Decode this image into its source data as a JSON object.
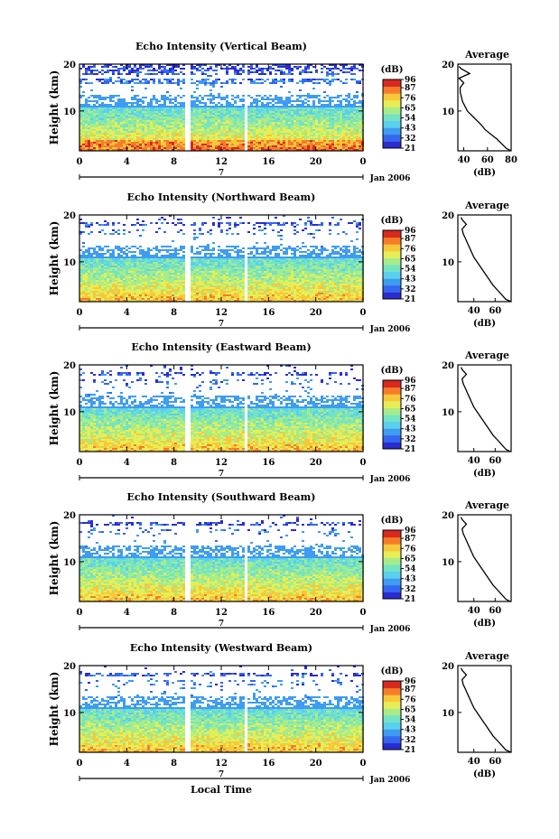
{
  "figure": {
    "x_axis_label": "Local Time",
    "date_label": "Jan 2006",
    "day_label": "7",
    "y_axis_label": "Height (km)",
    "avg_title": "Average",
    "avg_xlabel": "(dB)",
    "colorbar_unit": "(dB)",
    "colorbar_ticks": [
      "96",
      "87",
      "76",
      "65",
      "54",
      "43",
      "32",
      "21"
    ],
    "colors": {
      "scale": [
        "#2b2cd0",
        "#3566ef",
        "#3f9cf0",
        "#5ad0ee",
        "#74e3c4",
        "#a6ec8a",
        "#e7ee55",
        "#f7c83a",
        "#f57d2a",
        "#d9281e"
      ],
      "gap": "#ffffff"
    }
  },
  "chart_data": [
    {
      "type": "heatmap",
      "title": "Echo Intensity (Vertical Beam)",
      "xlabel": "Local Time",
      "ylabel": "Height (km)",
      "x_ticks": [
        "0",
        "4",
        "8",
        "12",
        "16",
        "20",
        "0"
      ],
      "y_ticks": [
        "20",
        "10"
      ],
      "xlim": [
        0,
        24
      ],
      "ylim": [
        1.5,
        20
      ],
      "colorbar": {
        "label": "(dB)",
        "range": [
          21,
          96
        ],
        "ticks": [
          96,
          87,
          76,
          65,
          54,
          43,
          32,
          21
        ]
      },
      "data_gaps_hours": [
        [
          8.9,
          9.3
        ],
        [
          13.8,
          14.2
        ]
      ],
      "average_profile": {
        "title": "Average",
        "xlabel": "(dB)",
        "x_ticks": [
          "40",
          "60",
          "80"
        ],
        "xlim": [
          35,
          80
        ],
        "y_ticks": [
          "20",
          "10"
        ],
        "height_km": [
          1.5,
          2,
          3,
          4,
          5,
          6,
          7,
          8,
          9,
          10,
          11,
          12,
          13,
          14,
          15,
          16,
          17,
          18,
          19,
          19.5
        ],
        "avg_db": [
          80,
          76,
          72,
          68,
          63,
          58,
          55,
          51,
          47,
          43,
          41,
          39,
          38,
          37,
          37,
          40,
          36,
          45,
          38,
          36
        ]
      }
    },
    {
      "type": "heatmap",
      "title": "Echo Intensity (Northward Beam)",
      "xlabel": "Local Time",
      "ylabel": "Height (km)",
      "x_ticks": [
        "0",
        "4",
        "8",
        "12",
        "16",
        "20",
        "0"
      ],
      "y_ticks": [
        "20",
        "10"
      ],
      "xlim": [
        0,
        24
      ],
      "ylim": [
        1.5,
        20
      ],
      "colorbar": {
        "label": "(dB)",
        "range": [
          21,
          96
        ],
        "ticks": [
          96,
          87,
          76,
          65,
          54,
          43,
          32,
          21
        ]
      },
      "data_gaps_hours": [
        [
          8.9,
          9.3
        ],
        [
          13.8,
          14.2
        ]
      ],
      "average_profile": {
        "title": "Average",
        "xlabel": "(dB)",
        "x_ticks": [
          "40",
          "60"
        ],
        "xlim": [
          25,
          75
        ],
        "y_ticks": [
          "20",
          "10"
        ],
        "height_km": [
          1.5,
          2,
          3,
          4,
          5,
          6,
          7,
          8,
          9,
          10,
          11,
          12,
          13,
          14,
          15,
          16,
          17,
          18,
          19,
          19.5
        ],
        "avg_db": [
          75,
          70,
          66,
          62,
          58,
          55,
          52,
          49,
          46,
          43,
          40,
          38,
          36,
          34,
          32,
          30,
          29,
          33,
          29,
          28
        ]
      }
    },
    {
      "type": "heatmap",
      "title": "Echo Intensity (Eastward Beam)",
      "xlabel": "Local Time",
      "ylabel": "Height (km)",
      "x_ticks": [
        "0",
        "4",
        "8",
        "12",
        "16",
        "20",
        "0"
      ],
      "y_ticks": [
        "20",
        "10"
      ],
      "xlim": [
        0,
        24
      ],
      "ylim": [
        1.5,
        20
      ],
      "colorbar": {
        "label": "(dB)",
        "range": [
          21,
          96
        ],
        "ticks": [
          96,
          87,
          76,
          65,
          54,
          43,
          32,
          21
        ]
      },
      "data_gaps_hours": [
        [
          8.9,
          9.3
        ],
        [
          13.8,
          14.2
        ]
      ],
      "average_profile": {
        "title": "Average",
        "xlabel": "(dB)",
        "x_ticks": [
          "40",
          "60"
        ],
        "xlim": [
          25,
          75
        ],
        "y_ticks": [
          "20",
          "10"
        ],
        "height_km": [
          1.5,
          2,
          3,
          4,
          5,
          6,
          7,
          8,
          9,
          10,
          11,
          12,
          13,
          14,
          15,
          16,
          17,
          18,
          19,
          19.5
        ],
        "avg_db": [
          74,
          70,
          66,
          62,
          58,
          55,
          52,
          49,
          46,
          43,
          40,
          38,
          36,
          34,
          32,
          30,
          29,
          33,
          29,
          28
        ]
      }
    },
    {
      "type": "heatmap",
      "title": "Echo Intensity (Southward Beam)",
      "xlabel": "Local Time",
      "ylabel": "Height (km)",
      "x_ticks": [
        "0",
        "4",
        "8",
        "12",
        "16",
        "20",
        "0"
      ],
      "y_ticks": [
        "20",
        "10"
      ],
      "xlim": [
        0,
        24
      ],
      "ylim": [
        1.5,
        20
      ],
      "colorbar": {
        "label": "(dB)",
        "range": [
          21,
          96
        ],
        "ticks": [
          96,
          87,
          76,
          65,
          54,
          43,
          32,
          21
        ]
      },
      "data_gaps_hours": [
        [
          8.9,
          9.3
        ],
        [
          13.8,
          14.2
        ]
      ],
      "average_profile": {
        "title": "Average",
        "xlabel": "(dB)",
        "x_ticks": [
          "40",
          "60"
        ],
        "xlim": [
          25,
          75
        ],
        "y_ticks": [
          "20",
          "10"
        ],
        "height_km": [
          1.5,
          2,
          3,
          4,
          5,
          6,
          7,
          8,
          9,
          10,
          11,
          12,
          13,
          14,
          15,
          16,
          17,
          18,
          19,
          19.5
        ],
        "avg_db": [
          74,
          70,
          66,
          62,
          58,
          55,
          52,
          49,
          46,
          43,
          40,
          38,
          36,
          34,
          32,
          30,
          29,
          33,
          29,
          28
        ]
      }
    },
    {
      "type": "heatmap",
      "title": "Echo Intensity (Westward Beam)",
      "xlabel": "Local Time",
      "ylabel": "Height (km)",
      "x_ticks": [
        "0",
        "4",
        "8",
        "12",
        "16",
        "20",
        "0"
      ],
      "y_ticks": [
        "20",
        "10"
      ],
      "xlim": [
        0,
        24
      ],
      "ylim": [
        1.5,
        20
      ],
      "colorbar": {
        "label": "(dB)",
        "range": [
          21,
          96
        ],
        "ticks": [
          96,
          87,
          76,
          65,
          54,
          43,
          32,
          21
        ]
      },
      "data_gaps_hours": [
        [
          8.9,
          9.3
        ],
        [
          13.8,
          14.2
        ]
      ],
      "average_profile": {
        "title": "Average",
        "xlabel": "(dB)",
        "x_ticks": [
          "40",
          "60"
        ],
        "xlim": [
          25,
          75
        ],
        "y_ticks": [
          "20",
          "10"
        ],
        "height_km": [
          1.5,
          2,
          3,
          4,
          5,
          6,
          7,
          8,
          9,
          10,
          11,
          12,
          13,
          14,
          15,
          16,
          17,
          18,
          19,
          19.5
        ],
        "avg_db": [
          75,
          70,
          66,
          62,
          58,
          55,
          52,
          49,
          46,
          43,
          40,
          38,
          36,
          34,
          32,
          30,
          29,
          33,
          29,
          28
        ]
      }
    }
  ]
}
